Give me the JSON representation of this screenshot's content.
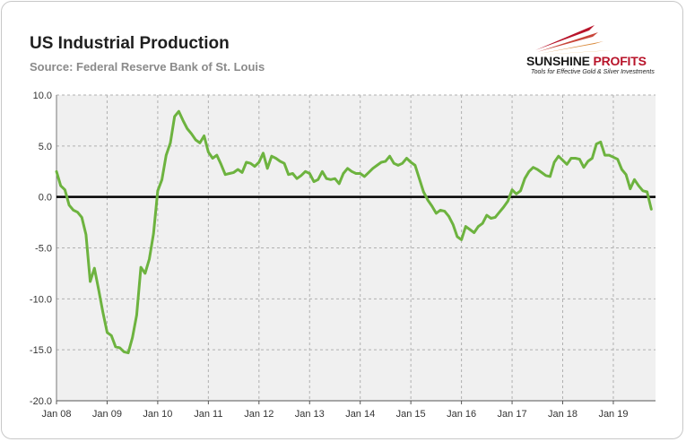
{
  "header": {
    "title": "US Industrial Production",
    "subtitle": "Source: Federal Reserve Bank of St. Louis"
  },
  "logo": {
    "name_part1": "SUNSHINE",
    "name_part2": "PROFITS",
    "tagline": "Tools for Effective Gold & Silver Investments"
  },
  "colors": {
    "line": "#6db33f",
    "zero_line": "#000000",
    "plot_bg": "#f0f0f0",
    "grid": "#b0b0b0",
    "logo_red": "#b8142a",
    "logo_gold": "#e8a33a"
  },
  "chart_data": {
    "type": "line",
    "title": "US Industrial Production",
    "subtitle": "Source: Federal Reserve Bank of St. Louis",
    "xlabel": "",
    "ylabel": "",
    "ylim": [
      -20,
      10
    ],
    "yticks": [
      10,
      5,
      0,
      -5,
      -10,
      -15,
      -20
    ],
    "ytick_labels": [
      "10.0",
      "5.0",
      "0.0",
      "-5.0",
      "-10.0",
      "-15.0",
      "-20.0"
    ],
    "xticks": [
      "Jan 08",
      "Jan 09",
      "Jan 10",
      "Jan 11",
      "Jan 12",
      "Jan 13",
      "Jan 14",
      "Jan 15",
      "Jan 16",
      "Jan 17",
      "Jan 18",
      "Jan 19"
    ],
    "x_start": "2008-01",
    "x_end": "2019-11",
    "grid": true,
    "reference_line": 0,
    "series": [
      {
        "name": "US Industrial Production (YoY %)",
        "values": [
          2.5,
          1.1,
          0.7,
          -0.8,
          -1.3,
          -1.5,
          -2.0,
          -3.7,
          -8.3,
          -7.0,
          -9.1,
          -11.3,
          -13.3,
          -13.6,
          -14.7,
          -14.8,
          -15.2,
          -15.3,
          -13.8,
          -11.6,
          -6.9,
          -7.5,
          -6.1,
          -3.6,
          0.6,
          1.7,
          4.1,
          5.3,
          7.9,
          8.4,
          7.5,
          6.7,
          6.2,
          5.6,
          5.3,
          6.0,
          4.4,
          3.8,
          4.1,
          3.2,
          2.2,
          2.3,
          2.4,
          2.7,
          2.4,
          3.4,
          3.3,
          3.0,
          3.4,
          4.3,
          2.8,
          4.0,
          3.8,
          3.5,
          3.3,
          2.2,
          2.3,
          1.8,
          2.1,
          2.5,
          2.3,
          1.5,
          1.7,
          2.5,
          1.8,
          1.7,
          1.8,
          1.3,
          2.3,
          2.8,
          2.5,
          2.3,
          2.3,
          2.0,
          2.4,
          2.8,
          3.1,
          3.4,
          3.5,
          4.0,
          3.3,
          3.1,
          3.3,
          3.8,
          3.4,
          3.1,
          1.8,
          0.5,
          -0.3,
          -0.9,
          -1.6,
          -1.3,
          -1.4,
          -1.9,
          -2.7,
          -3.9,
          -4.2,
          -2.9,
          -3.2,
          -3.5,
          -2.9,
          -2.6,
          -1.8,
          -2.1,
          -2.0,
          -1.5,
          -1.0,
          -0.4,
          0.7,
          0.3,
          0.6,
          1.8,
          2.5,
          2.9,
          2.7,
          2.4,
          2.1,
          2.0,
          3.4,
          4.0,
          3.6,
          3.2,
          3.8,
          3.8,
          3.7,
          2.9,
          3.5,
          3.8,
          5.2,
          5.4,
          4.1,
          4.1,
          3.9,
          3.7,
          2.7,
          2.2,
          0.8,
          1.7,
          1.1,
          0.6,
          0.5,
          -1.2
        ]
      }
    ]
  }
}
